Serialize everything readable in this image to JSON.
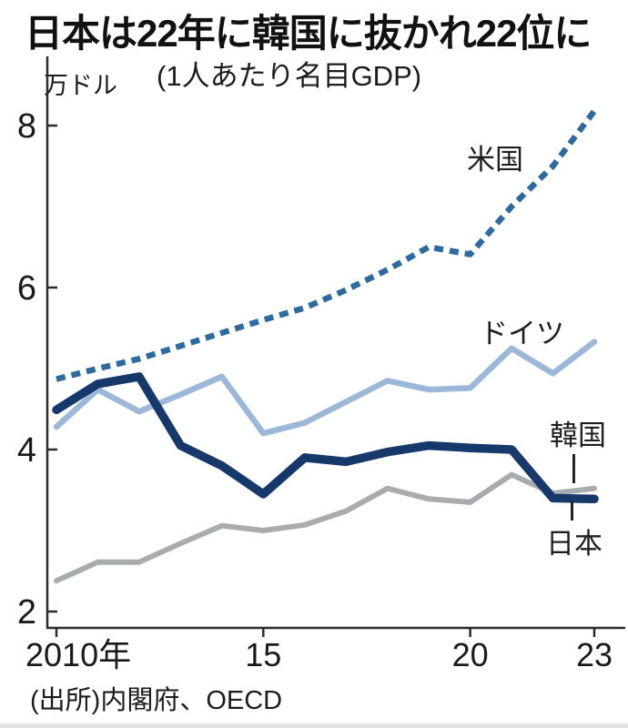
{
  "page": {
    "title": "日本は22年に韓国に抜かれ22位に",
    "subtitle": "(1人あたり名目GDP)",
    "unit": "万ドル",
    "source": "(出所)内閣府、OECD"
  },
  "chart_data": {
    "type": "line",
    "title": "日本は22年に韓国に抜かれ22位に",
    "subtitle": "(1人あたり名目GDP)",
    "ylabel": "万ドル",
    "source": "(出所)内閣府、OECD",
    "x": [
      2010,
      2011,
      2012,
      2013,
      2014,
      2015,
      2016,
      2017,
      2018,
      2019,
      2020,
      2021,
      2022,
      2023
    ],
    "xtick_labels": [
      {
        "year": 2010,
        "label": "2010年"
      },
      {
        "year": 2015,
        "label": "15"
      },
      {
        "year": 2020,
        "label": "20"
      },
      {
        "year": 2023,
        "label": "23"
      }
    ],
    "yticks": [
      2,
      4,
      6,
      8
    ],
    "ylim": [
      1.8,
      8.8
    ],
    "grid": false,
    "legend_position": "inline-labels",
    "series": [
      {
        "name": "米国",
        "key": "usa",
        "line_style": "dashed",
        "color": "#2d6a9f",
        "stroke_width": 6.5,
        "values": [
          4.87,
          5.0,
          5.12,
          5.28,
          5.44,
          5.6,
          5.75,
          5.97,
          6.22,
          6.5,
          6.41,
          7.0,
          7.5,
          8.18
        ]
      },
      {
        "name": "ドイツ",
        "key": "germany",
        "line_style": "solid",
        "color": "#9cb8d8",
        "stroke_width": 6.5,
        "values": [
          4.28,
          4.74,
          4.47,
          4.68,
          4.9,
          4.2,
          4.33,
          4.59,
          4.85,
          4.74,
          4.76,
          5.25,
          4.94,
          5.33
        ]
      },
      {
        "name": "韓国",
        "key": "korea",
        "line_style": "solid",
        "color": "#a9acae",
        "stroke_width": 6,
        "values": [
          2.38,
          2.61,
          2.61,
          2.84,
          3.06,
          3.0,
          3.07,
          3.24,
          3.52,
          3.39,
          3.35,
          3.69,
          3.46,
          3.52
        ]
      },
      {
        "name": "日本",
        "key": "japan",
        "line_style": "solid",
        "color": "#16386b",
        "stroke_width": 9.5,
        "values": [
          4.49,
          4.81,
          4.9,
          4.05,
          3.8,
          3.45,
          3.9,
          3.85,
          3.97,
          4.05,
          4.02,
          4.0,
          3.4,
          3.39
        ]
      }
    ],
    "axis_color": "#2b2b2b"
  }
}
